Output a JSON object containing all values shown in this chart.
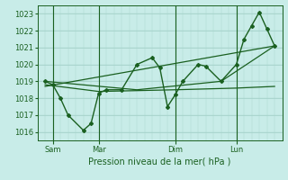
{
  "background_color": "#c8ece8",
  "grid_color": "#a8d4cc",
  "line_color": "#1a6020",
  "title": "Pression niveau de la mer( hPa )",
  "ylabel_ticks": [
    1016,
    1017,
    1018,
    1019,
    1020,
    1021,
    1022,
    1023
  ],
  "ylim": [
    1015.5,
    1023.5
  ],
  "xlim": [
    0,
    16
  ],
  "x_tick_positions": [
    1,
    4,
    9,
    13
  ],
  "x_tick_labels": [
    "Sam",
    "Mar",
    "Dim",
    "Lun"
  ],
  "vline_positions": [
    1,
    4,
    9,
    13
  ],
  "series1_x": [
    0.5,
    1.0,
    1.5,
    2.0,
    3.0,
    3.5,
    4.0,
    4.5,
    5.5,
    6.5,
    7.5,
    8.0,
    8.5,
    9.0,
    9.5,
    10.5,
    11.0,
    12.0,
    13.0,
    13.5,
    14.0,
    14.5,
    15.0,
    15.5
  ],
  "series1_y": [
    1019.0,
    1018.8,
    1018.0,
    1017.0,
    1016.1,
    1016.5,
    1018.3,
    1018.5,
    1018.5,
    1020.0,
    1020.4,
    1019.8,
    1017.5,
    1018.2,
    1019.0,
    1020.0,
    1019.9,
    1019.0,
    1020.0,
    1021.5,
    1022.3,
    1023.1,
    1022.1,
    1021.1
  ],
  "series2_x": [
    0.5,
    15.5
  ],
  "series2_y": [
    1018.7,
    1021.1
  ],
  "series3_x": [
    0.5,
    4.0,
    9.0,
    13.0,
    15.5
  ],
  "series3_y": [
    1018.8,
    1018.4,
    1018.5,
    1018.6,
    1018.7
  ],
  "series4_x": [
    0.5,
    6.5,
    12.0,
    15.5
  ],
  "series4_y": [
    1019.0,
    1018.5,
    1019.0,
    1021.1
  ],
  "figsize": [
    3.2,
    2.0
  ],
  "dpi": 100
}
